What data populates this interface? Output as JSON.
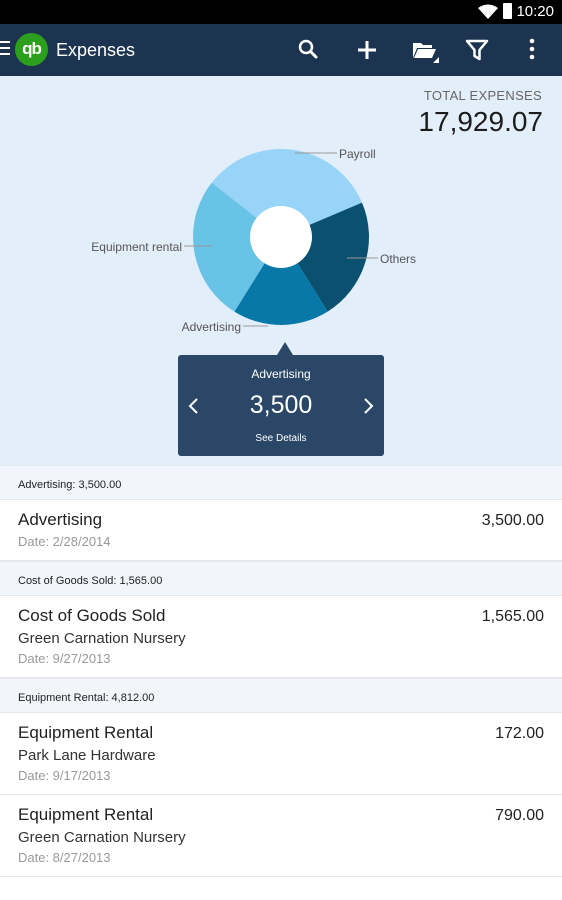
{
  "status_bar": {
    "time": "10:20"
  },
  "app_bar": {
    "logo_text": "qb",
    "title": "Expenses"
  },
  "summary": {
    "total_label": "TOTAL EXPENSES",
    "total_value": "17,929.07"
  },
  "chart_data": {
    "type": "pie",
    "style": "donut",
    "slices": [
      {
        "label": "Payroll",
        "color": "#97d4f8"
      },
      {
        "label": "Others",
        "color": "#09516f"
      },
      {
        "label": "Advertising",
        "color": "#0778a7"
      },
      {
        "label": "Equipment rental",
        "color": "#68c3e6"
      }
    ]
  },
  "popup": {
    "category": "Advertising",
    "value": "3,500",
    "link": "See Details"
  },
  "groups": [
    {
      "header": "Advertising: 3,500.00",
      "rows": [
        {
          "name": "Advertising",
          "vendor": "",
          "date": "Date: 2/28/2014",
          "amount": "3,500.00"
        }
      ]
    },
    {
      "header": "Cost of Goods Sold: 1,565.00",
      "rows": [
        {
          "name": "Cost of Goods Sold",
          "vendor": "Green Carnation Nursery",
          "date": "Date: 9/27/2013",
          "amount": "1,565.00"
        }
      ]
    },
    {
      "header": "Equipment Rental: 4,812.00",
      "rows": [
        {
          "name": "Equipment Rental",
          "vendor": "Park Lane Hardware",
          "date": "Date: 9/17/2013",
          "amount": "172.00"
        },
        {
          "name": "Equipment Rental",
          "vendor": "Green Carnation Nursery",
          "date": "Date: 8/27/2013",
          "amount": "790.00"
        }
      ]
    }
  ]
}
